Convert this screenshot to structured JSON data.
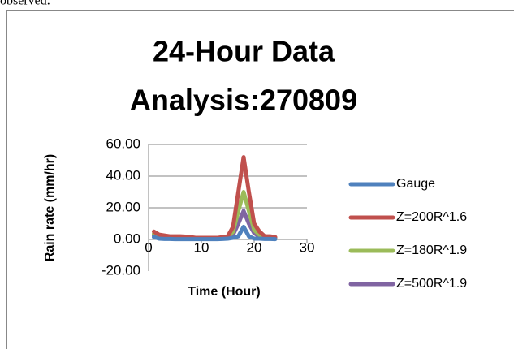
{
  "caption": "observed.",
  "chart_data": {
    "type": "line",
    "title": [
      "24-Hour Data",
      "Analysis:270809"
    ],
    "x_label": "Time (Hour)",
    "y_label": "Rain rate (mm/hr)",
    "x": [
      1,
      2,
      3,
      4,
      5,
      6,
      7,
      8,
      9,
      10,
      11,
      12,
      13,
      14,
      15,
      16,
      17,
      18,
      19,
      20,
      21,
      22,
      23,
      24
    ],
    "series": [
      {
        "name": "Gauge",
        "color": "#4f81bd",
        "values": [
          1.5,
          0.5,
          0.3,
          0.3,
          0.2,
          0.2,
          0.2,
          0.2,
          0.2,
          0.2,
          0.2,
          0.2,
          0.2,
          0.3,
          0.5,
          1,
          2,
          8,
          2,
          0.5,
          0.5,
          0.3,
          0.3,
          0.2
        ]
      },
      {
        "name": "Z=200R^1.6",
        "color": "#c0504d",
        "values": [
          5,
          3,
          2.5,
          2,
          2,
          2,
          1.8,
          1.5,
          1,
          1,
          1,
          1,
          1,
          1.5,
          2,
          8,
          30,
          52,
          30,
          10,
          5,
          2,
          2,
          1.5
        ]
      },
      {
        "name": "Z=180R^1.9",
        "color": "#9bbb59",
        "values": [
          3.5,
          2,
          1.5,
          1.5,
          1.5,
          1.2,
          1,
          1,
          0.8,
          0.8,
          0.8,
          0.8,
          0.8,
          1,
          1.5,
          5,
          18,
          30,
          18,
          6,
          3,
          1.5,
          1.5,
          1
        ]
      },
      {
        "name": "Z=500R^1.9",
        "color": "#8064a2",
        "values": [
          2.5,
          1.5,
          1,
          1,
          1,
          0.8,
          0.7,
          0.7,
          0.5,
          0.5,
          0.5,
          0.5,
          0.5,
          0.7,
          1,
          3,
          10,
          18,
          10,
          4,
          2,
          1,
          1,
          0.8
        ]
      }
    ],
    "xlim": [
      0,
      30
    ],
    "xticks": [
      0,
      10,
      20,
      30
    ],
    "ylim": [
      -20,
      60
    ],
    "yticks": [
      {
        "value": -20,
        "label": "-20.00"
      },
      {
        "value": 0,
        "label": "0.00"
      },
      {
        "value": 20,
        "label": "20.00"
      },
      {
        "value": 40,
        "label": "40.00"
      },
      {
        "value": 60,
        "label": "60.00"
      }
    ],
    "grid": true,
    "legend": "right"
  }
}
